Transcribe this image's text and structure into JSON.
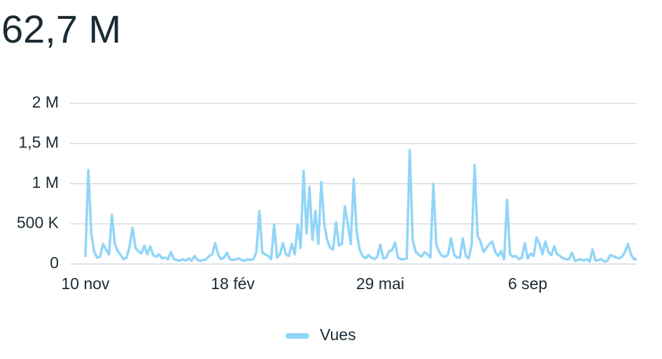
{
  "chart_data": {
    "type": "line",
    "title": "62,7 M",
    "categories": [
      "10 nov",
      null,
      null,
      null,
      null,
      null,
      null,
      null,
      null,
      null,
      null,
      null,
      null,
      null,
      null,
      null,
      null,
      null,
      null,
      null,
      null,
      null,
      null,
      null,
      null,
      null,
      null,
      null,
      null,
      null,
      null,
      null,
      null,
      null,
      null,
      null,
      null,
      null,
      null,
      null,
      null,
      null,
      null,
      null,
      null,
      null,
      null,
      null,
      null,
      null,
      "18 fév",
      null,
      null,
      null,
      null,
      null,
      null,
      null,
      null,
      null,
      null,
      null,
      null,
      null,
      null,
      null,
      null,
      null,
      null,
      null,
      null,
      null,
      null,
      null,
      null,
      null,
      null,
      null,
      null,
      null,
      null,
      null,
      null,
      null,
      null,
      null,
      null,
      null,
      null,
      null,
      null,
      null,
      null,
      null,
      null,
      null,
      null,
      null,
      null,
      null,
      "29 mai",
      null,
      null,
      null,
      null,
      null,
      null,
      null,
      null,
      null,
      null,
      null,
      null,
      null,
      null,
      null,
      null,
      null,
      null,
      null,
      null,
      null,
      null,
      null,
      null,
      null,
      null,
      null,
      null,
      null,
      null,
      null,
      null,
      null,
      null,
      null,
      null,
      null,
      null,
      null,
      null,
      null,
      null,
      null,
      null,
      null,
      null,
      null,
      null,
      null,
      "6 sep",
      null,
      null,
      null,
      null,
      null,
      null,
      null,
      null,
      null,
      null,
      null,
      null,
      null,
      null,
      null,
      null,
      null,
      null,
      null,
      null,
      null,
      null,
      null,
      null,
      null,
      null,
      null,
      null,
      null,
      null,
      null,
      null,
      null,
      null,
      null,
      null,
      null
    ],
    "series": [
      {
        "name": "Vues",
        "color": "#92d5f8",
        "values": [
          90000,
          1170000,
          380000,
          150000,
          80000,
          90000,
          250000,
          180000,
          120000,
          610000,
          250000,
          160000,
          110000,
          60000,
          80000,
          220000,
          450000,
          200000,
          160000,
          130000,
          230000,
          120000,
          220000,
          110000,
          90000,
          120000,
          70000,
          80000,
          60000,
          150000,
          60000,
          50000,
          40000,
          60000,
          40000,
          70000,
          40000,
          100000,
          50000,
          40000,
          50000,
          60000,
          100000,
          120000,
          260000,
          120000,
          60000,
          80000,
          140000,
          60000,
          50000,
          60000,
          70000,
          50000,
          40000,
          60000,
          50000,
          60000,
          150000,
          660000,
          140000,
          120000,
          100000,
          60000,
          490000,
          80000,
          120000,
          260000,
          120000,
          100000,
          250000,
          120000,
          490000,
          200000,
          1160000,
          380000,
          960000,
          300000,
          660000,
          250000,
          1020000,
          500000,
          300000,
          200000,
          180000,
          520000,
          230000,
          250000,
          720000,
          500000,
          250000,
          1060000,
          400000,
          180000,
          100000,
          70000,
          110000,
          80000,
          60000,
          90000,
          240000,
          70000,
          80000,
          160000,
          170000,
          270000,
          80000,
          60000,
          60000,
          70000,
          1420000,
          300000,
          150000,
          120000,
          90000,
          150000,
          120000,
          80000,
          1000000,
          240000,
          150000,
          100000,
          90000,
          120000,
          320000,
          120000,
          80000,
          80000,
          320000,
          100000,
          70000,
          240000,
          1230000,
          350000,
          280000,
          150000,
          200000,
          250000,
          280000,
          150000,
          100000,
          160000,
          60000,
          800000,
          120000,
          90000,
          100000,
          60000,
          80000,
          260000,
          70000,
          130000,
          100000,
          330000,
          250000,
          120000,
          280000,
          150000,
          110000,
          220000,
          120000,
          100000,
          70000,
          60000,
          60000,
          140000,
          40000,
          50000,
          60000,
          40000,
          60000,
          30000,
          180000,
          40000,
          50000,
          60000,
          30000,
          40000,
          110000,
          100000,
          80000,
          70000,
          90000,
          150000,
          250000,
          120000,
          60000,
          60000
        ]
      }
    ],
    "ylim": [
      0,
      2000000
    ],
    "yticks": [
      {
        "value": 0,
        "label": "0"
      },
      {
        "value": 500000,
        "label": "500 K"
      },
      {
        "value": 1000000,
        "label": "1 M"
      },
      {
        "value": 1500000,
        "label": "1,5 M"
      },
      {
        "value": 2000000,
        "label": "2 M"
      }
    ],
    "grid": true,
    "legend": "bottom"
  }
}
